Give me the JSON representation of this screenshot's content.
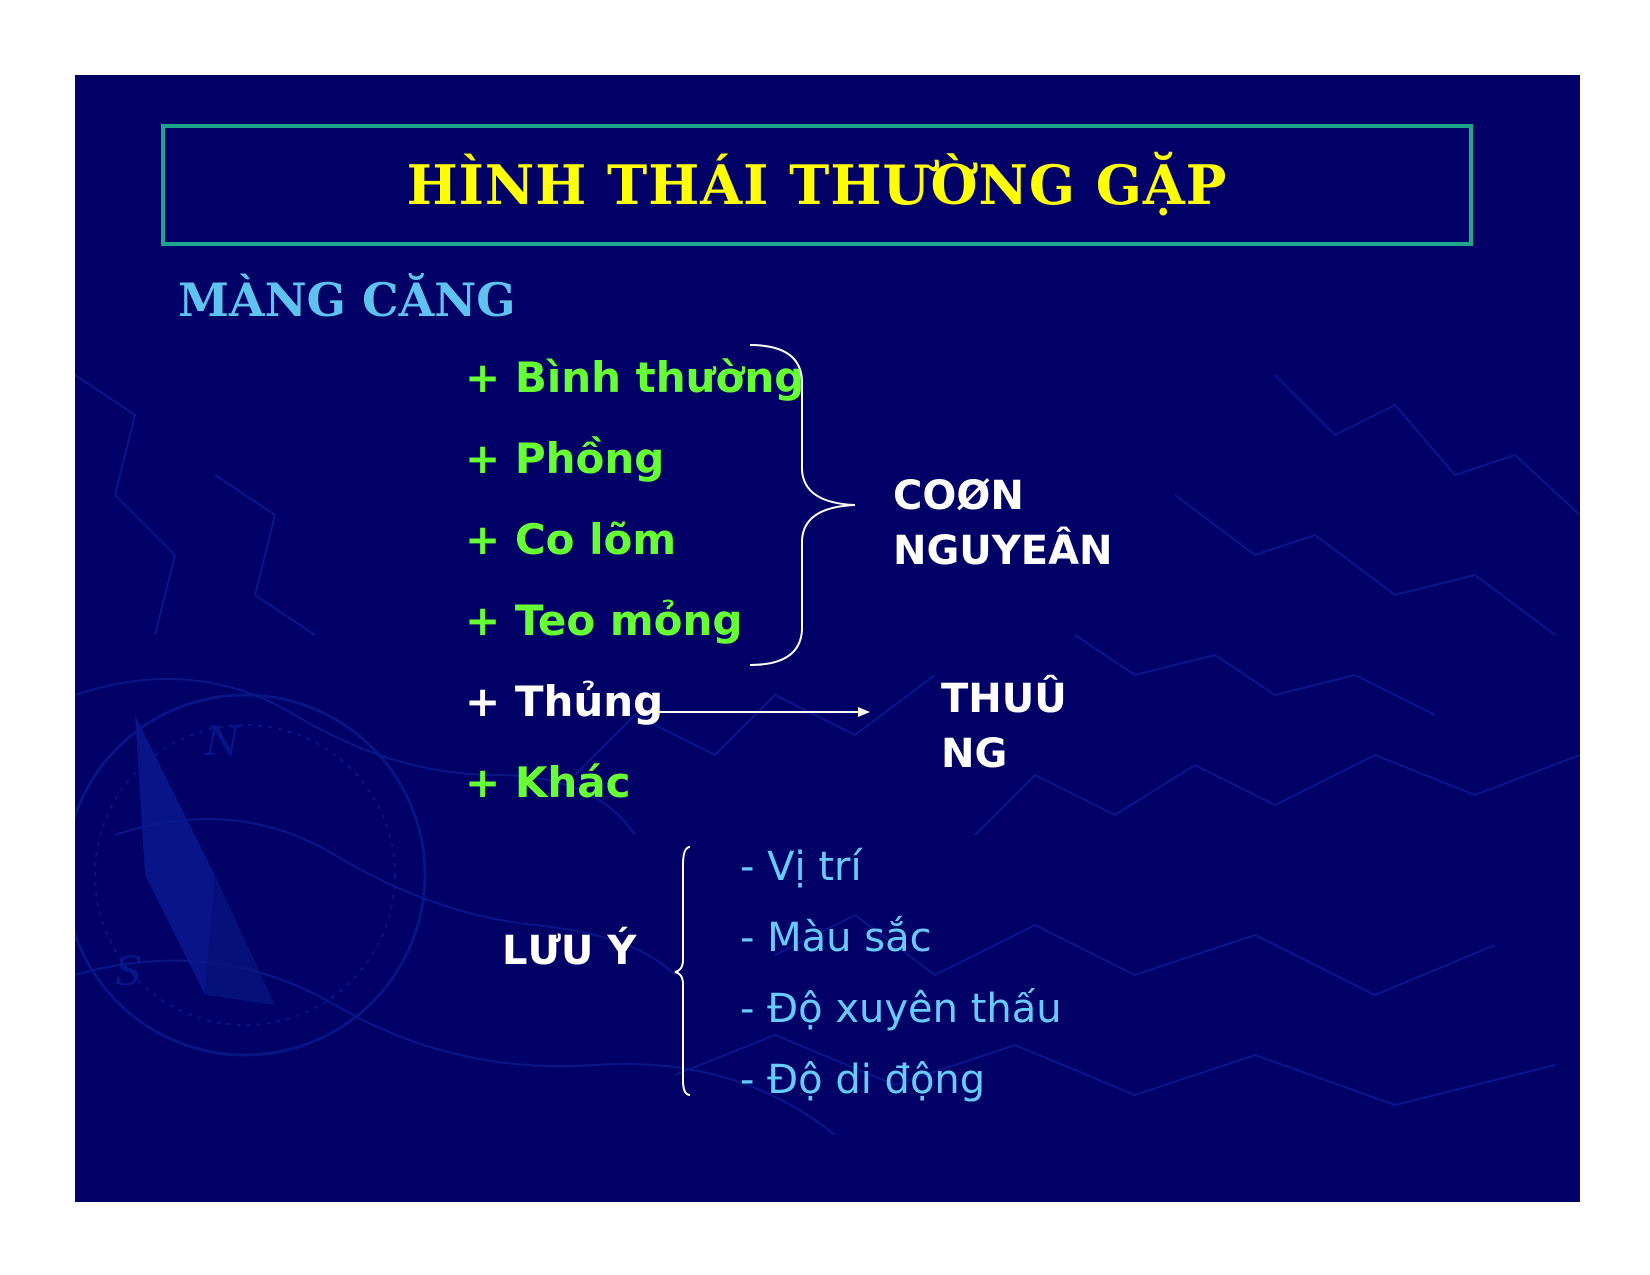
{
  "title": "HÌNH THÁI THƯỜNG GẶP",
  "subtitle": "MÀNG CĂNG",
  "items": [
    "+ Bình thường",
    "+ Phồng",
    "+ Co lõm",
    "+ Teo mỏng",
    "+ Thủng",
    "+ Khác"
  ],
  "cause_label": {
    "line1": "COØN",
    "line2": "NGUYEÂN"
  },
  "perforation_label": {
    "line1": "THUÛ",
    "line2": "NG"
  },
  "note_label": "LƯU Ý",
  "notes": [
    "- Vị trí",
    "- Màu sắc",
    "- Độ xuyên thấu",
    "- Độ di động"
  ],
  "colors": {
    "background": "#000066",
    "title": "#ffff00",
    "subtitle": "#5fc3f0",
    "items": "#66ff33",
    "notes": "#66ccff",
    "frame": "#1fa58c"
  }
}
